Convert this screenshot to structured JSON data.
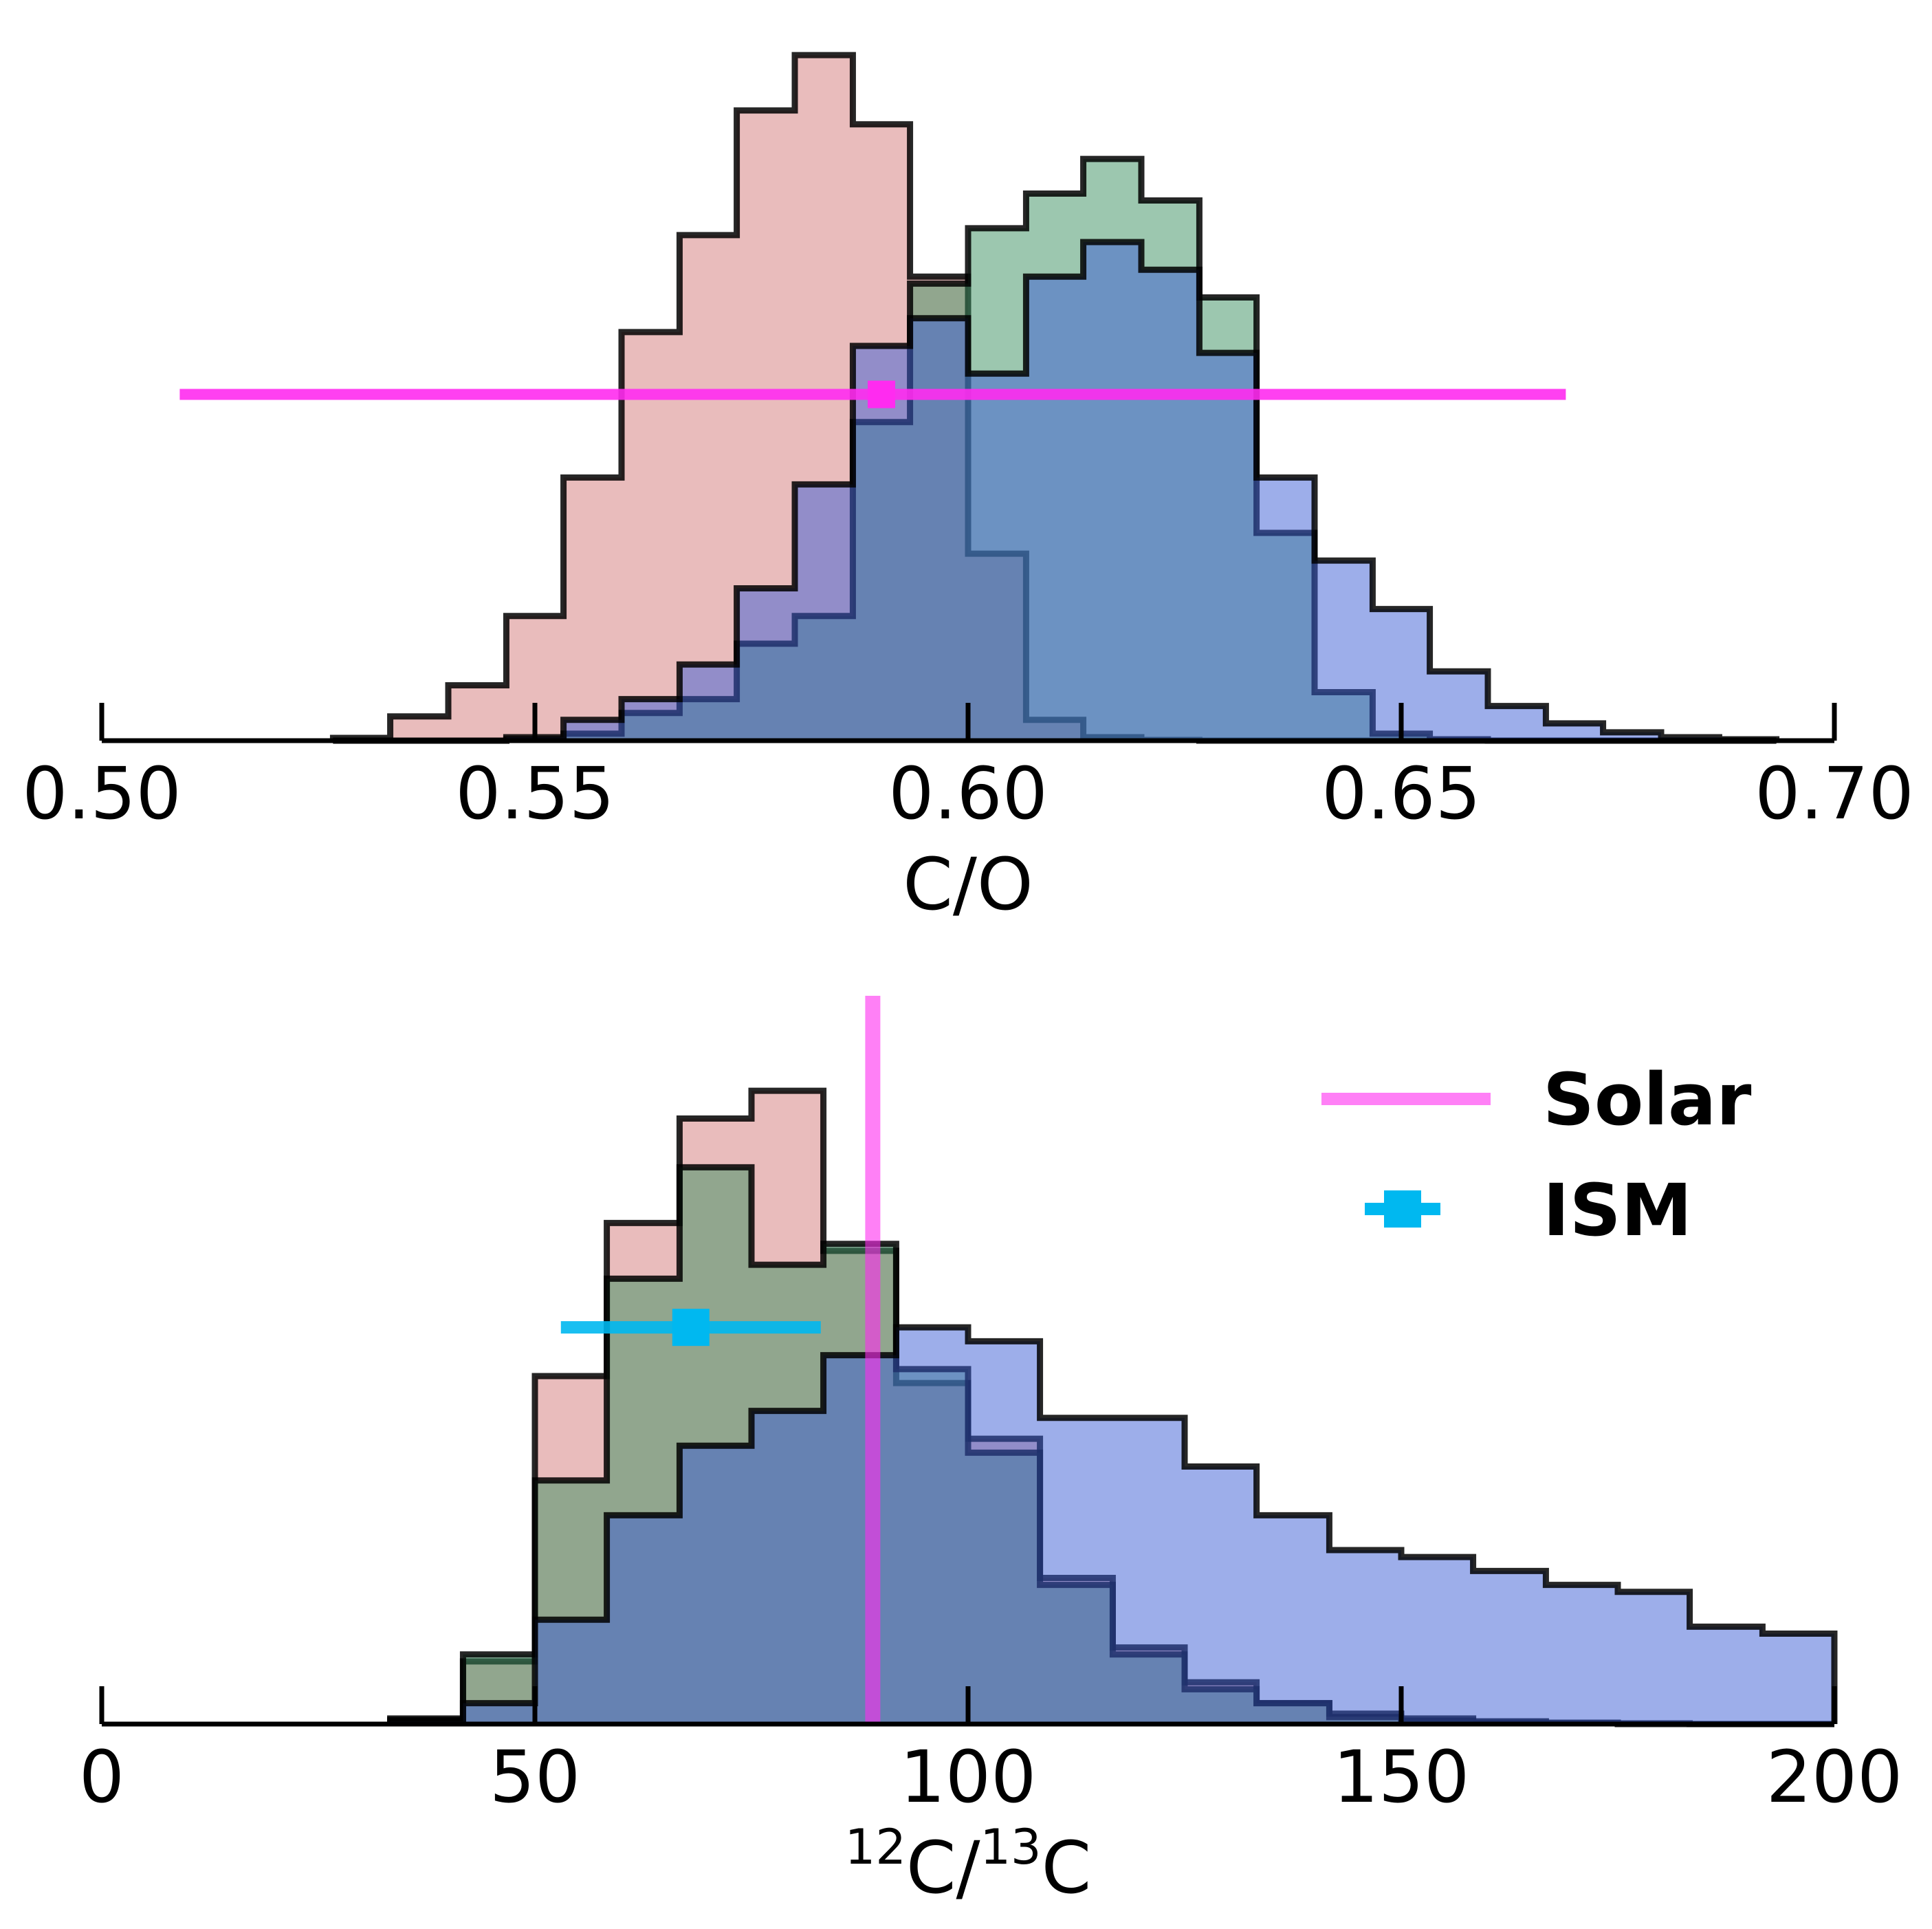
{
  "chart_data": [
    {
      "type": "histogram",
      "xlabel": "C/O",
      "xlim": [
        0.5,
        0.7
      ],
      "ylim": [
        0,
        1
      ],
      "xticks": [
        0.5,
        0.55,
        0.6,
        0.65,
        0.7
      ],
      "xtick_labels": [
        "0.50",
        "0.55",
        "0.60",
        "0.65",
        "0.70"
      ],
      "bin_edges": [
        0.5267,
        0.5333,
        0.54,
        0.5467,
        0.5533,
        0.56,
        0.5667,
        0.5733,
        0.58,
        0.5867,
        0.5933,
        0.6,
        0.6067,
        0.6133,
        0.62,
        0.6267,
        0.6333,
        0.64,
        0.6467,
        0.6533,
        0.66,
        0.6667,
        0.6733,
        0.68,
        0.6867,
        0.6933
      ],
      "series": [
        {
          "name": "red",
          "color": "#d47a7a",
          "values": [
            0.004,
            0.035,
            0.08,
            0.18,
            0.38,
            0.59,
            0.73,
            0.91,
            0.99,
            0.89,
            0.67,
            0.27,
            0.03,
            0.005,
            0.001,
            0,
            0,
            0,
            0,
            0,
            0,
            0,
            0,
            0,
            0
          ]
        },
        {
          "name": "green",
          "color": "#3a8f5f",
          "values": [
            0,
            0,
            0,
            0.002,
            0.01,
            0.04,
            0.06,
            0.14,
            0.18,
            0.46,
            0.66,
            0.74,
            0.79,
            0.84,
            0.78,
            0.64,
            0.3,
            0.07,
            0.01,
            0.002,
            0,
            0,
            0,
            0,
            0
          ]
        },
        {
          "name": "blue",
          "color": "#3c5ed6",
          "values": [
            0,
            0,
            0,
            0.005,
            0.03,
            0.06,
            0.11,
            0.22,
            0.37,
            0.57,
            0.61,
            0.53,
            0.67,
            0.72,
            0.68,
            0.56,
            0.38,
            0.26,
            0.19,
            0.1,
            0.05,
            0.025,
            0.012,
            0.005,
            0.002
          ]
        }
      ],
      "reference_point": {
        "name": "Solar",
        "color": "#ff2bf0",
        "x": 0.59,
        "xerr": [
          0.509,
          0.669
        ],
        "y_level": 0.5
      }
    },
    {
      "type": "histogram",
      "xlabel_parts": [
        "12",
        "C/",
        "13",
        "C"
      ],
      "xlim": [
        0,
        200
      ],
      "ylim": [
        0,
        1
      ],
      "xticks": [
        0,
        50,
        100,
        150,
        200
      ],
      "xtick_labels": [
        "0",
        "50",
        "100",
        "150",
        "200"
      ],
      "bin_edges": [
        33.3,
        41.7,
        50,
        58.3,
        66.7,
        75,
        83.3,
        91.7,
        100,
        108.3,
        116.7,
        125,
        133.3,
        141.7,
        150,
        158.3,
        166.7,
        175,
        183.3,
        191.7,
        200
      ],
      "series": [
        {
          "name": "red",
          "color": "#d47a7a",
          "values": [
            0.008,
            0.09,
            0.5,
            0.72,
            0.87,
            0.91,
            0.68,
            0.49,
            0.41,
            0.21,
            0.11,
            0.06,
            0.03,
            0.015,
            0.008,
            0.004,
            0.002,
            0.001,
            0,
            0
          ]
        },
        {
          "name": "green",
          "color": "#3a8f5f",
          "values": [
            0.006,
            0.1,
            0.35,
            0.64,
            0.8,
            0.66,
            0.69,
            0.51,
            0.39,
            0.2,
            0.1,
            0.05,
            0.03,
            0.01,
            0.005,
            0.002,
            0.001,
            0,
            0,
            0
          ]
        },
        {
          "name": "blue",
          "color": "#3c5ed6",
          "values": [
            0.004,
            0.03,
            0.15,
            0.3,
            0.4,
            0.45,
            0.53,
            0.57,
            0.55,
            0.44,
            0.44,
            0.37,
            0.3,
            0.25,
            0.24,
            0.22,
            0.2,
            0.19,
            0.14,
            0.13
          ]
        }
      ],
      "reference_line": {
        "name": "Solar",
        "color": "#ff2bf0",
        "x": 89
      },
      "ism_point": {
        "name": "ISM",
        "color": "#00b8f0",
        "x": 68,
        "xerr": [
          53,
          83
        ],
        "y_level": 0.57
      },
      "legend": {
        "position": "top-right",
        "entries": [
          "Solar",
          "ISM"
        ]
      }
    }
  ]
}
